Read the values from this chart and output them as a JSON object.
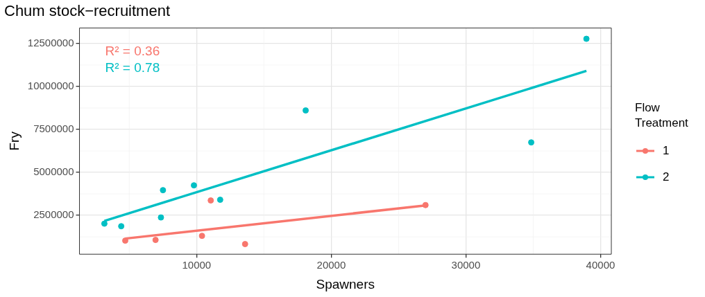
{
  "chart_data": {
    "type": "scatter",
    "title": "Chum stock−recruitment",
    "xlabel": "Spawners",
    "ylabel": "Fry",
    "legend_title": "Flow Treatment",
    "xlim": [
      1300,
      40800
    ],
    "xticks": [
      10000,
      20000,
      30000,
      40000
    ],
    "ylim": [
      240000,
      13410000
    ],
    "yticks": [
      2500000,
      5000000,
      7500000,
      10000000,
      12500000
    ],
    "grid": true,
    "legend": "right",
    "marker": "circle",
    "annotations": [
      "R² = 0.36",
      "R² = 0.78"
    ],
    "series": [
      {
        "name": "1",
        "color": "#f8766d",
        "x": [
          4700,
          6950,
          10400,
          11050,
          13600,
          27000
        ],
        "values": [
          1030000,
          1070000,
          1310000,
          3370000,
          830000,
          3100000
        ]
      },
      {
        "name": "2",
        "color": "#00bfc4",
        "x": [
          3150,
          4400,
          7350,
          7500,
          9800,
          11750,
          18100,
          34850,
          38950
        ],
        "values": [
          2020000,
          1870000,
          2380000,
          3970000,
          4250000,
          3410000,
          8610000,
          6750000,
          12780000
        ]
      },
      {
        "type": "line",
        "marker": "none",
        "color": "#f8766d",
        "x": [
          4700,
          27000
        ],
        "values": [
          1150000,
          3080000
        ]
      },
      {
        "type": "line",
        "marker": "none",
        "color": "#00bfc4",
        "x": [
          3150,
          38950
        ],
        "values": [
          2180000,
          10910000
        ]
      }
    ]
  }
}
